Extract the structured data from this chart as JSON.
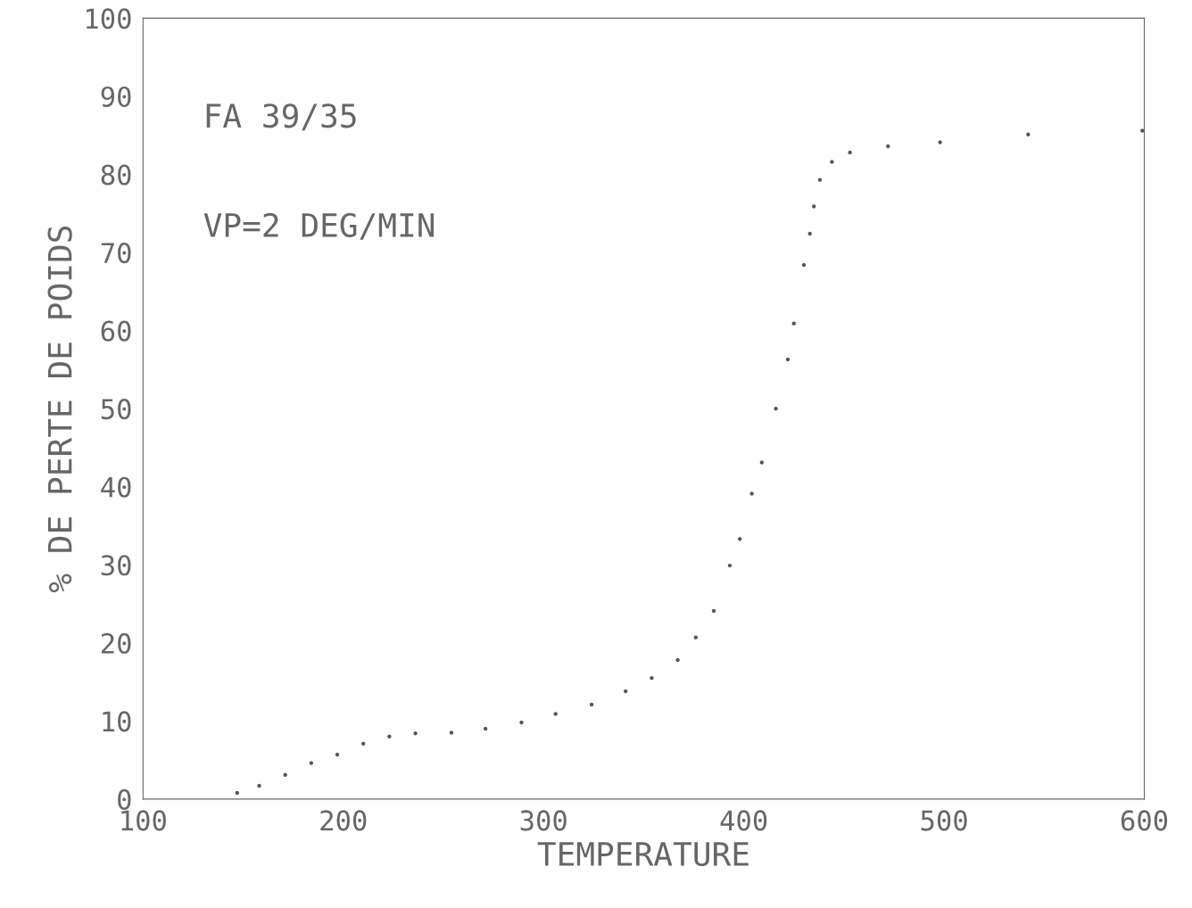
{
  "chart_data": {
    "type": "scatter",
    "xlabel": "TEMPERATURE",
    "ylabel": "% DE PERTE DE POIDS",
    "annotations": [
      "FA 39/35",
      "VP=2 DEG/MIN"
    ],
    "x": [
      147,
      158,
      171,
      184,
      197,
      210,
      223,
      236,
      254,
      271,
      289,
      306,
      324,
      341,
      354,
      367,
      376,
      385,
      393,
      398,
      404,
      409,
      416,
      422,
      425,
      430,
      433,
      435,
      438,
      444,
      453,
      472,
      498,
      542,
      599
    ],
    "values": [
      0.8,
      1.7,
      3.1,
      4.6,
      5.7,
      7.1,
      8.0,
      8.4,
      8.5,
      9.0,
      9.8,
      10.9,
      12.1,
      13.8,
      15.5,
      17.8,
      20.7,
      24.1,
      29.9,
      33.3,
      39.1,
      43.1,
      50,
      56.3,
      60.9,
      68.4,
      72.4,
      75.9,
      79.3,
      81.6,
      82.8,
      83.6,
      84.1,
      85.1,
      85.6
    ],
    "color": "#555555",
    "marker": "circle",
    "xlim": [
      100,
      600
    ],
    "xticks": [
      100,
      200,
      300,
      400,
      500,
      600
    ],
    "ylim": [
      0,
      100
    ],
    "yticks": [
      0,
      10,
      20,
      30,
      40,
      50,
      60,
      70,
      80,
      90,
      100
    ],
    "grid": false
  }
}
